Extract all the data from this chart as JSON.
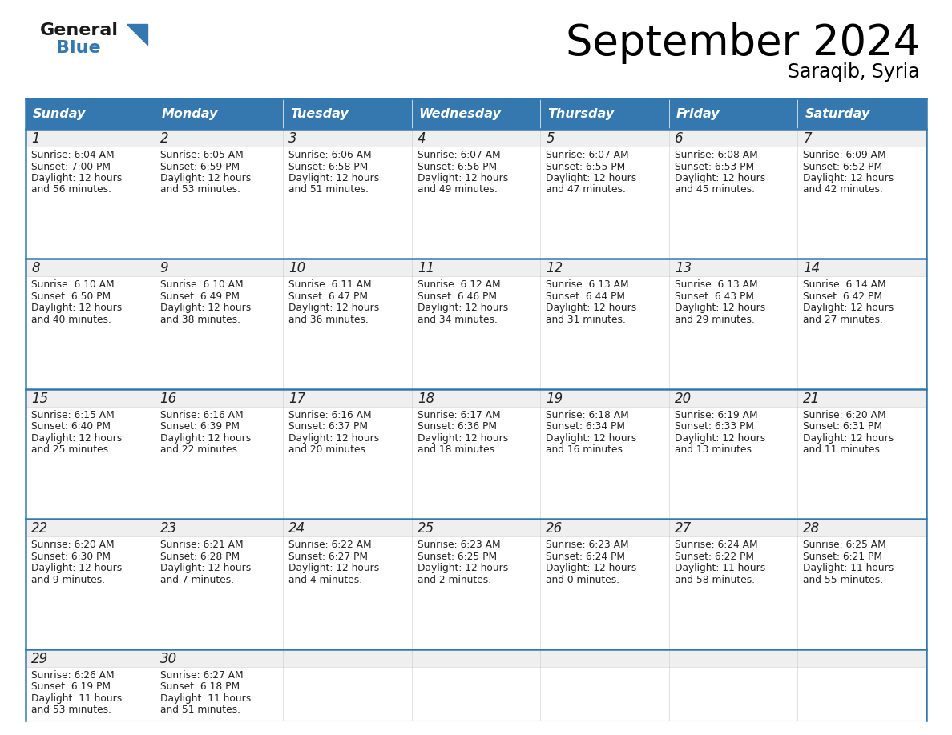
{
  "title": "September 2024",
  "subtitle": "Saraqib, Syria",
  "header_color": "#3578b0",
  "header_text_color": "#ffffff",
  "border_color": "#3578b0",
  "row_border_color": "#3578b0",
  "cell_border_color": "#cccccc",
  "day_num_bg": "#eeeeee",
  "text_color": "#222222",
  "days_of_week": [
    "Sunday",
    "Monday",
    "Tuesday",
    "Wednesday",
    "Thursday",
    "Friday",
    "Saturday"
  ],
  "weeks": [
    [
      {
        "day": 1,
        "sunrise": "6:04 AM",
        "sunset": "7:00 PM",
        "daylight_hours": 12,
        "daylight_mins": 56
      },
      {
        "day": 2,
        "sunrise": "6:05 AM",
        "sunset": "6:59 PM",
        "daylight_hours": 12,
        "daylight_mins": 53
      },
      {
        "day": 3,
        "sunrise": "6:06 AM",
        "sunset": "6:58 PM",
        "daylight_hours": 12,
        "daylight_mins": 51
      },
      {
        "day": 4,
        "sunrise": "6:07 AM",
        "sunset": "6:56 PM",
        "daylight_hours": 12,
        "daylight_mins": 49
      },
      {
        "day": 5,
        "sunrise": "6:07 AM",
        "sunset": "6:55 PM",
        "daylight_hours": 12,
        "daylight_mins": 47
      },
      {
        "day": 6,
        "sunrise": "6:08 AM",
        "sunset": "6:53 PM",
        "daylight_hours": 12,
        "daylight_mins": 45
      },
      {
        "day": 7,
        "sunrise": "6:09 AM",
        "sunset": "6:52 PM",
        "daylight_hours": 12,
        "daylight_mins": 42
      }
    ],
    [
      {
        "day": 8,
        "sunrise": "6:10 AM",
        "sunset": "6:50 PM",
        "daylight_hours": 12,
        "daylight_mins": 40
      },
      {
        "day": 9,
        "sunrise": "6:10 AM",
        "sunset": "6:49 PM",
        "daylight_hours": 12,
        "daylight_mins": 38
      },
      {
        "day": 10,
        "sunrise": "6:11 AM",
        "sunset": "6:47 PM",
        "daylight_hours": 12,
        "daylight_mins": 36
      },
      {
        "day": 11,
        "sunrise": "6:12 AM",
        "sunset": "6:46 PM",
        "daylight_hours": 12,
        "daylight_mins": 34
      },
      {
        "day": 12,
        "sunrise": "6:13 AM",
        "sunset": "6:44 PM",
        "daylight_hours": 12,
        "daylight_mins": 31
      },
      {
        "day": 13,
        "sunrise": "6:13 AM",
        "sunset": "6:43 PM",
        "daylight_hours": 12,
        "daylight_mins": 29
      },
      {
        "day": 14,
        "sunrise": "6:14 AM",
        "sunset": "6:42 PM",
        "daylight_hours": 12,
        "daylight_mins": 27
      }
    ],
    [
      {
        "day": 15,
        "sunrise": "6:15 AM",
        "sunset": "6:40 PM",
        "daylight_hours": 12,
        "daylight_mins": 25
      },
      {
        "day": 16,
        "sunrise": "6:16 AM",
        "sunset": "6:39 PM",
        "daylight_hours": 12,
        "daylight_mins": 22
      },
      {
        "day": 17,
        "sunrise": "6:16 AM",
        "sunset": "6:37 PM",
        "daylight_hours": 12,
        "daylight_mins": 20
      },
      {
        "day": 18,
        "sunrise": "6:17 AM",
        "sunset": "6:36 PM",
        "daylight_hours": 12,
        "daylight_mins": 18
      },
      {
        "day": 19,
        "sunrise": "6:18 AM",
        "sunset": "6:34 PM",
        "daylight_hours": 12,
        "daylight_mins": 16
      },
      {
        "day": 20,
        "sunrise": "6:19 AM",
        "sunset": "6:33 PM",
        "daylight_hours": 12,
        "daylight_mins": 13
      },
      {
        "day": 21,
        "sunrise": "6:20 AM",
        "sunset": "6:31 PM",
        "daylight_hours": 12,
        "daylight_mins": 11
      }
    ],
    [
      {
        "day": 22,
        "sunrise": "6:20 AM",
        "sunset": "6:30 PM",
        "daylight_hours": 12,
        "daylight_mins": 9
      },
      {
        "day": 23,
        "sunrise": "6:21 AM",
        "sunset": "6:28 PM",
        "daylight_hours": 12,
        "daylight_mins": 7
      },
      {
        "day": 24,
        "sunrise": "6:22 AM",
        "sunset": "6:27 PM",
        "daylight_hours": 12,
        "daylight_mins": 4
      },
      {
        "day": 25,
        "sunrise": "6:23 AM",
        "sunset": "6:25 PM",
        "daylight_hours": 12,
        "daylight_mins": 2
      },
      {
        "day": 26,
        "sunrise": "6:23 AM",
        "sunset": "6:24 PM",
        "daylight_hours": 12,
        "daylight_mins": 0
      },
      {
        "day": 27,
        "sunrise": "6:24 AM",
        "sunset": "6:22 PM",
        "daylight_hours": 11,
        "daylight_mins": 58
      },
      {
        "day": 28,
        "sunrise": "6:25 AM",
        "sunset": "6:21 PM",
        "daylight_hours": 11,
        "daylight_mins": 55
      }
    ],
    [
      {
        "day": 29,
        "sunrise": "6:26 AM",
        "sunset": "6:19 PM",
        "daylight_hours": 11,
        "daylight_mins": 53
      },
      {
        "day": 30,
        "sunrise": "6:27 AM",
        "sunset": "6:18 PM",
        "daylight_hours": 11,
        "daylight_mins": 51
      },
      null,
      null,
      null,
      null,
      null
    ]
  ],
  "logo_color_general": "#1a1a1a",
  "logo_color_blue": "#3578b0"
}
